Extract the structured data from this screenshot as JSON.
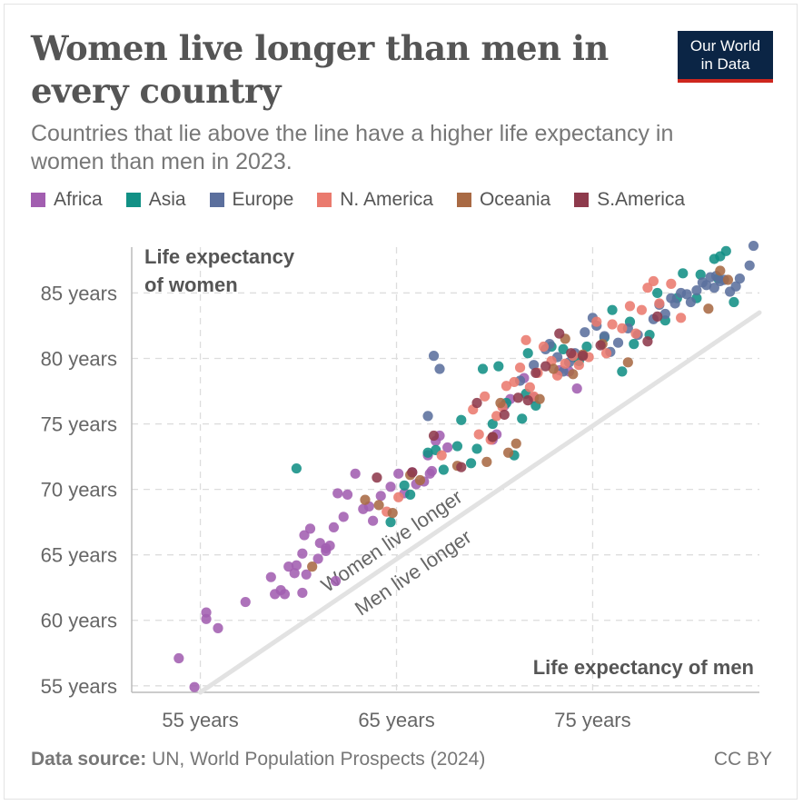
{
  "header": {
    "title": "Women live longer than men in every country",
    "subtitle": "Countries that lie above the line have a higher life expectancy in women than men in 2023.",
    "logo_line1": "Our World",
    "logo_line2": "in Data"
  },
  "legend": [
    {
      "label": "Africa",
      "color": "#a25eb0"
    },
    {
      "label": "Asia",
      "color": "#129085"
    },
    {
      "label": "Europe",
      "color": "#5b6f9d"
    },
    {
      "label": "N. America",
      "color": "#ea7a6e"
    },
    {
      "label": "Oceania",
      "color": "#a96a44"
    },
    {
      "label": "S.America",
      "color": "#8e3a4c"
    }
  ],
  "footer": {
    "source_label": "Data source:",
    "source_text": "UN, World Population Prospects (2024)",
    "license": "CC BY"
  },
  "chart_data": {
    "type": "scatter",
    "xlabel": "Life expectancy of men",
    "ylabel": "Life expectancy of women",
    "xlim": [
      51.5,
      83.5
    ],
    "ylim": [
      54.5,
      88.5
    ],
    "x_ticks": [
      {
        "value": 55,
        "label": "55 years"
      },
      {
        "value": 65,
        "label": "65 years"
      },
      {
        "value": 75,
        "label": "75 years"
      }
    ],
    "y_ticks": [
      {
        "value": 55,
        "label": "55 years"
      },
      {
        "value": 60,
        "label": "60 years"
      },
      {
        "value": 65,
        "label": "65 years"
      },
      {
        "value": 70,
        "label": "70 years"
      },
      {
        "value": 75,
        "label": "75 years"
      },
      {
        "value": 80,
        "label": "80 years"
      },
      {
        "value": 85,
        "label": "85 years"
      }
    ],
    "grid": true,
    "reference_line": {
      "from": [
        55,
        54.5
      ],
      "to": [
        83.5,
        83.5
      ],
      "label_above": "Women live longer",
      "label_below": "Men live longer"
    },
    "legend_position": "top-left",
    "series": [
      {
        "name": "Africa",
        "color": "#a25eb0",
        "x": [
          53.9,
          54.7,
          55.3,
          55.3,
          55.9,
          57.3,
          58.6,
          58.8,
          59.1,
          59.3,
          59.5,
          59.8,
          59.9,
          60.2,
          60.2,
          60.3,
          60.4,
          60.6,
          61.0,
          61.1,
          61.4,
          61.4,
          61.6,
          61.8,
          61.9,
          62.0,
          62.3,
          62.5,
          62.9,
          63.3,
          63.6,
          63.8,
          64.2,
          64.7,
          65.1,
          65.4,
          65.8,
          66.0,
          66.4,
          66.7,
          67.0,
          67.2,
          67.6,
          66.6,
          66.8,
          69.9,
          70.1,
          70.5,
          70.8,
          71.5,
          72.0,
          73.3,
          73.8,
          74.2
        ],
        "y": [
          57.1,
          54.9,
          60.6,
          60.1,
          59.4,
          61.4,
          63.3,
          62.0,
          62.3,
          62.0,
          64.1,
          63.6,
          64.2,
          62.1,
          65.1,
          66.5,
          63.5,
          67.0,
          64.7,
          65.9,
          65.5,
          65.3,
          65.7,
          67.1,
          63.0,
          69.7,
          67.9,
          69.6,
          71.2,
          68.5,
          68.7,
          67.6,
          69.5,
          70.2,
          71.2,
          69.7,
          71.3,
          70.4,
          70.6,
          71.2,
          73.7,
          74.1,
          73.2,
          72.6,
          71.4,
          73.8,
          74.2,
          76.4,
          76.9,
          78.5,
          77.0,
          79.1,
          79.0,
          77.7
        ]
      },
      {
        "name": "Asia",
        "color": "#129085",
        "x": [
          59.9,
          64.7,
          65.4,
          65.7,
          66.6,
          67.0,
          67.4,
          68.1,
          68.3,
          68.8,
          69.1,
          69.4,
          69.9,
          70.2,
          70.6,
          71.0,
          71.4,
          71.6,
          71.7,
          72.1,
          72.9,
          73.5,
          74.0,
          74.3,
          74.7,
          75.6,
          76.0,
          76.5,
          76.9,
          77.1,
          77.9,
          78.3,
          78.7,
          79.3,
          79.6,
          80.3,
          80.5,
          81.2,
          81.4,
          81.5,
          81.8,
          82.2
        ],
        "y": [
          71.6,
          67.5,
          70.3,
          69.6,
          72.8,
          73.0,
          71.5,
          73.3,
          75.3,
          72.0,
          73.1,
          79.2,
          75.0,
          79.4,
          76.6,
          72.6,
          75.4,
          77.3,
          80.4,
          76.4,
          80.9,
          80.7,
          80.1,
          79.8,
          80.9,
          81.6,
          83.7,
          79.0,
          82.8,
          81.1,
          81.8,
          85.0,
          82.9,
          84.6,
          86.5,
          84.6,
          86.4,
          87.6,
          86.1,
          87.8,
          88.2,
          84.3
        ]
      },
      {
        "name": "Europe",
        "color": "#5b6f9d",
        "x": [
          66.6,
          66.9,
          67.2,
          71.3,
          72.0,
          72.6,
          72.8,
          73.2,
          73.5,
          73.8,
          74.1,
          74.6,
          75.0,
          75.2,
          75.6,
          75.9,
          76.3,
          76.8,
          77.3,
          78.1,
          78.4,
          78.7,
          79.0,
          79.2,
          79.5,
          79.8,
          80.0,
          80.3,
          80.6,
          80.8,
          81.0,
          81.2,
          81.3,
          81.5,
          81.7,
          82.0,
          82.3,
          82.5,
          83.2,
          83.0
        ],
        "y": [
          75.6,
          80.2,
          79.2,
          78.3,
          79.5,
          80.7,
          81.1,
          80.1,
          79.0,
          79.7,
          80.4,
          82.0,
          83.1,
          82.5,
          81.7,
          80.5,
          81.2,
          82.3,
          81.8,
          83.0,
          84.1,
          83.4,
          84.6,
          84.2,
          85.0,
          84.9,
          84.3,
          85.2,
          85.8,
          85.6,
          86.2,
          85.4,
          86.3,
          85.9,
          86.0,
          85.1,
          85.5,
          86.1,
          88.6,
          87.1
        ]
      },
      {
        "name": "N. America",
        "color": "#ea7a6e",
        "x": [
          64.5,
          65.1,
          67.3,
          68.9,
          69.2,
          69.5,
          69.8,
          70.1,
          70.4,
          70.6,
          71.0,
          71.3,
          71.6,
          71.8,
          72.0,
          72.2,
          72.5,
          72.9,
          73.2,
          73.6,
          74.0,
          74.3,
          74.8,
          75.2,
          75.7,
          76.0,
          76.5,
          76.9,
          77.2,
          77.5,
          77.8,
          78.1,
          78.4,
          79.0,
          79.5
        ],
        "y": [
          68.3,
          69.4,
          72.6,
          76.1,
          74.2,
          77.1,
          73.8,
          75.6,
          76.3,
          77.9,
          78.2,
          79.3,
          81.4,
          77.8,
          77.1,
          78.9,
          80.9,
          79.8,
          78.7,
          79.6,
          80.2,
          79.5,
          80.1,
          82.8,
          80.4,
          82.6,
          82.3,
          84.0,
          81.9,
          83.7,
          85.4,
          85.9,
          84.2,
          85.7,
          83.1
        ]
      },
      {
        "name": "Oceania",
        "color": "#a96a44",
        "x": [
          60.7,
          63.4,
          64.1,
          64.8,
          65.7,
          66.2,
          68.1,
          69.6,
          69.9,
          70.3,
          70.7,
          71.1,
          72.3,
          73.0,
          73.6,
          74.0,
          74.5,
          75.5,
          76.8,
          80.9,
          81.5,
          81.9
        ],
        "y": [
          64.1,
          69.2,
          68.8,
          68.2,
          71.1,
          70.7,
          71.8,
          72.1,
          74.0,
          76.6,
          72.8,
          73.5,
          76.9,
          79.2,
          81.5,
          78.8,
          80.3,
          81.1,
          79.7,
          83.8,
          86.7,
          86.0
        ]
      },
      {
        "name": "S.America",
        "color": "#8e3a4c",
        "x": [
          64.0,
          65.8,
          66.9,
          68.3,
          69.1,
          69.9,
          70.5,
          71.2,
          71.7,
          72.1,
          72.6,
          73.3,
          73.9,
          74.5,
          75.4,
          77.8,
          78.3
        ],
        "y": [
          70.9,
          71.3,
          74.1,
          71.7,
          76.6,
          74.0,
          75.7,
          77.0,
          76.8,
          78.9,
          79.4,
          81.9,
          80.4,
          80.2,
          81.0,
          81.3,
          83.2
        ]
      }
    ]
  }
}
